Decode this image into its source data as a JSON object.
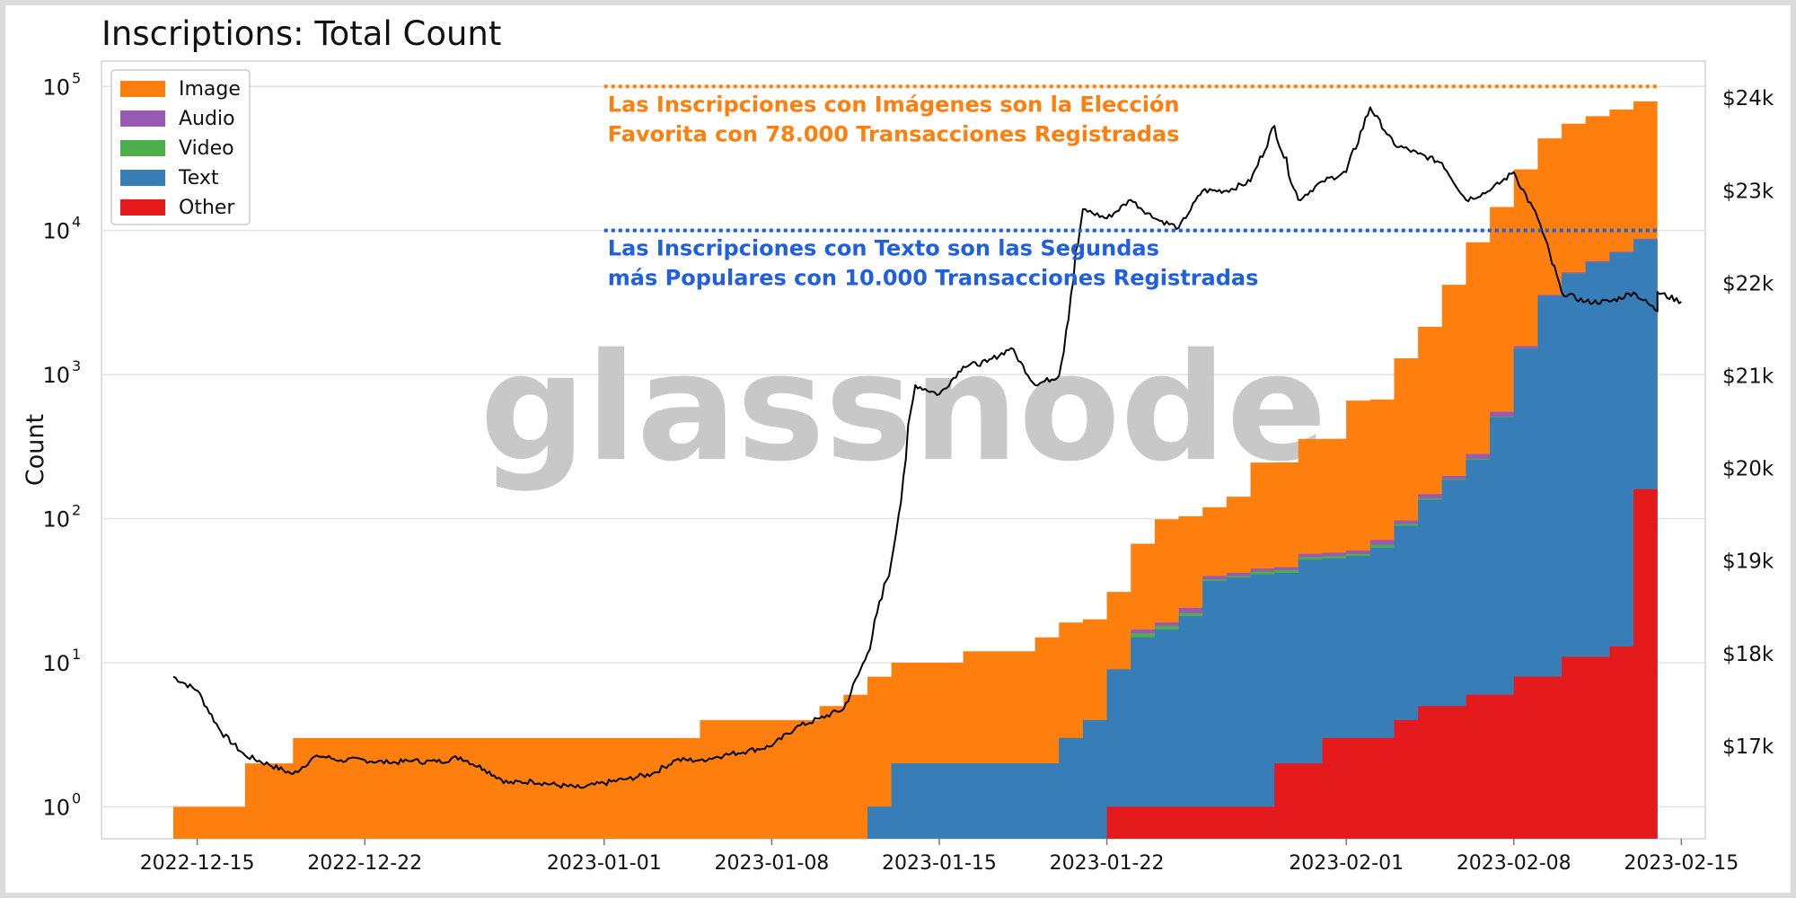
{
  "chart_data": {
    "type": "area",
    "title": "Inscriptions: Total Count",
    "ylabel": "Count",
    "y_scale": "log",
    "ylim": [
      0.6,
      150000
    ],
    "y_ticks": [
      {
        "base": "10",
        "exp": "0",
        "value": 1
      },
      {
        "base": "10",
        "exp": "1",
        "value": 10
      },
      {
        "base": "10",
        "exp": "2",
        "value": 100
      },
      {
        "base": "10",
        "exp": "3",
        "value": 1000
      },
      {
        "base": "10",
        "exp": "4",
        "value": 10000
      },
      {
        "base": "10",
        "exp": "5",
        "value": 100000
      }
    ],
    "y2_scale": "linear",
    "y2lim": [
      16000,
      24400
    ],
    "y2_ticks": [
      {
        "label": "$17k",
        "value": 17000
      },
      {
        "label": "$18k",
        "value": 18000
      },
      {
        "label": "$19k",
        "value": 19000
      },
      {
        "label": "$20k",
        "value": 20000
      },
      {
        "label": "$21k",
        "value": 21000
      },
      {
        "label": "$22k",
        "value": 22000
      },
      {
        "label": "$23k",
        "value": 23000
      },
      {
        "label": "$24k",
        "value": 24000
      }
    ],
    "xlim": [
      "2022-12-11",
      "2023-02-16"
    ],
    "x_ticks": [
      "2022-12-15",
      "2022-12-22",
      "2023-01-01",
      "2023-01-08",
      "2023-01-15",
      "2023-01-22",
      "2023-02-01",
      "2023-02-08",
      "2023-02-15"
    ],
    "grid": "horizontal",
    "legend_position": "top-left",
    "stacked": true,
    "series": [
      {
        "name": "Image",
        "color": "#ff7f0e",
        "points": [
          [
            "2022-12-14",
            1
          ],
          [
            "2022-12-17",
            2
          ],
          [
            "2022-12-19",
            3
          ],
          [
            "2023-01-05",
            4
          ],
          [
            "2023-01-10",
            5
          ],
          [
            "2023-01-11",
            6
          ],
          [
            "2023-01-12",
            7
          ],
          [
            "2023-01-13",
            8
          ],
          [
            "2023-01-16",
            10
          ],
          [
            "2023-01-19",
            13
          ],
          [
            "2023-01-20",
            16
          ],
          [
            "2023-01-22",
            22
          ],
          [
            "2023-01-23",
            50
          ],
          [
            "2023-01-24",
            80
          ],
          [
            "2023-01-27",
            100
          ],
          [
            "2023-01-28",
            200
          ],
          [
            "2023-01-30",
            300
          ],
          [
            "2023-02-01",
            600
          ],
          [
            "2023-02-03",
            1200
          ],
          [
            "2023-02-04",
            2000
          ],
          [
            "2023-02-05",
            4000
          ],
          [
            "2023-02-06",
            8000
          ],
          [
            "2023-02-07",
            14000
          ],
          [
            "2023-02-08",
            25000
          ],
          [
            "2023-02-09",
            40000
          ],
          [
            "2023-02-10",
            50000
          ],
          [
            "2023-02-11",
            56000
          ],
          [
            "2023-02-12",
            62000
          ],
          [
            "2023-02-13",
            70000
          ],
          [
            "2023-02-14",
            78000
          ]
        ]
      },
      {
        "name": "Audio",
        "color": "#9b59b6",
        "points": [
          [
            "2023-01-22",
            0
          ],
          [
            "2023-01-23",
            1
          ],
          [
            "2023-01-25",
            2
          ],
          [
            "2023-01-30",
            3
          ],
          [
            "2023-02-02",
            5
          ],
          [
            "2023-02-04",
            10
          ],
          [
            "2023-02-06",
            20
          ],
          [
            "2023-02-07",
            40
          ],
          [
            "2023-02-08",
            60
          ],
          [
            "2023-02-10",
            100
          ],
          [
            "2023-02-14",
            150
          ]
        ]
      },
      {
        "name": "Video",
        "color": "#4daf4a",
        "points": [
          [
            "2023-01-22",
            0
          ],
          [
            "2023-01-23",
            1
          ],
          [
            "2023-01-28",
            2
          ],
          [
            "2023-02-02",
            3
          ],
          [
            "2023-02-06",
            5
          ],
          [
            "2023-02-08",
            8
          ],
          [
            "2023-02-10",
            15
          ],
          [
            "2023-02-14",
            30
          ]
        ]
      },
      {
        "name": "Text",
        "color": "#377eb8",
        "points": [
          [
            "2023-01-12",
            1
          ],
          [
            "2023-01-13",
            2
          ],
          [
            "2023-01-19",
            2
          ],
          [
            "2023-01-20",
            3
          ],
          [
            "2023-01-21",
            4
          ],
          [
            "2023-01-22",
            8
          ],
          [
            "2023-01-23",
            14
          ],
          [
            "2023-01-24",
            16
          ],
          [
            "2023-01-25",
            20
          ],
          [
            "2023-01-26",
            36
          ],
          [
            "2023-01-27",
            38
          ],
          [
            "2023-01-28",
            40
          ],
          [
            "2023-01-30",
            50
          ],
          [
            "2023-02-01",
            52
          ],
          [
            "2023-02-02",
            60
          ],
          [
            "2023-02-03",
            85
          ],
          [
            "2023-02-04",
            130
          ],
          [
            "2023-02-05",
            180
          ],
          [
            "2023-02-06",
            250
          ],
          [
            "2023-02-07",
            500
          ],
          [
            "2023-02-08",
            1500
          ],
          [
            "2023-02-09",
            3500
          ],
          [
            "2023-02-10",
            5000
          ],
          [
            "2023-02-11",
            6000
          ],
          [
            "2023-02-12",
            7000
          ],
          [
            "2023-02-13",
            8500
          ],
          [
            "2023-02-14",
            10000
          ]
        ]
      },
      {
        "name": "Other",
        "color": "#e41a1c",
        "points": [
          [
            "2023-01-22",
            1
          ],
          [
            "2023-01-28",
            1
          ],
          [
            "2023-01-29",
            2
          ],
          [
            "2023-01-31",
            3
          ],
          [
            "2023-02-03",
            4
          ],
          [
            "2023-02-04",
            5
          ],
          [
            "2023-02-06",
            6
          ],
          [
            "2023-02-08",
            8
          ],
          [
            "2023-02-10",
            11
          ],
          [
            "2023-02-12",
            13
          ],
          [
            "2023-02-13",
            20
          ],
          [
            "2023-02-13",
            160
          ],
          [
            "2023-02-14",
            170
          ]
        ]
      }
    ],
    "price_series": {
      "axis": "right",
      "color": "#000000",
      "points": [
        [
          "2022-12-14",
          17750
        ],
        [
          "2022-12-15",
          17600
        ],
        [
          "2022-12-16",
          17150
        ],
        [
          "2022-12-17",
          16900
        ],
        [
          "2022-12-18",
          16800
        ],
        [
          "2022-12-19",
          16700
        ],
        [
          "2022-12-20",
          16900
        ],
        [
          "2022-12-21",
          16850
        ],
        [
          "2022-12-22",
          16850
        ],
        [
          "2022-12-23",
          16820
        ],
        [
          "2022-12-24",
          16840
        ],
        [
          "2022-12-25",
          16830
        ],
        [
          "2022-12-26",
          16880
        ],
        [
          "2022-12-27",
          16750
        ],
        [
          "2022-12-28",
          16600
        ],
        [
          "2022-12-29",
          16620
        ],
        [
          "2022-12-30",
          16580
        ],
        [
          "2022-12-31",
          16550
        ],
        [
          "2023-01-01",
          16600
        ],
        [
          "2023-01-02",
          16650
        ],
        [
          "2023-01-03",
          16700
        ],
        [
          "2023-01-04",
          16850
        ],
        [
          "2023-01-05",
          16850
        ],
        [
          "2023-01-06",
          16900
        ],
        [
          "2023-01-07",
          16950
        ],
        [
          "2023-01-08",
          17000
        ],
        [
          "2023-01-09",
          17200
        ],
        [
          "2023-01-10",
          17300
        ],
        [
          "2023-01-11",
          17400
        ],
        [
          "2023-01-12",
          18000
        ],
        [
          "2023-01-13",
          19000
        ],
        [
          "2023-01-14",
          20900
        ],
        [
          "2023-01-15",
          20800
        ],
        [
          "2023-01-16",
          21100
        ],
        [
          "2023-01-17",
          21150
        ],
        [
          "2023-01-18",
          21300
        ],
        [
          "2023-01-19",
          20900
        ],
        [
          "2023-01-20",
          21000
        ],
        [
          "2023-01-21",
          22800
        ],
        [
          "2023-01-22",
          22700
        ],
        [
          "2023-01-23",
          22900
        ],
        [
          "2023-01-24",
          22700
        ],
        [
          "2023-01-25",
          22600
        ],
        [
          "2023-01-26",
          23000
        ],
        [
          "2023-01-27",
          23000
        ],
        [
          "2023-01-28",
          23100
        ],
        [
          "2023-01-29",
          23700
        ],
        [
          "2023-01-30",
          22900
        ],
        [
          "2023-01-31",
          23100
        ],
        [
          "2023-02-01",
          23200
        ],
        [
          "2023-02-02",
          23900
        ],
        [
          "2023-02-03",
          23500
        ],
        [
          "2023-02-04",
          23400
        ],
        [
          "2023-02-05",
          23300
        ],
        [
          "2023-02-06",
          22900
        ],
        [
          "2023-02-07",
          23000
        ],
        [
          "2023-02-08",
          23200
        ],
        [
          "2023-02-09",
          22700
        ],
        [
          "2023-02-10",
          21900
        ],
        [
          "2023-02-11",
          21800
        ],
        [
          "2023-02-12",
          21800
        ],
        [
          "2023-02-13",
          21900
        ],
        [
          "2023-02-14",
          21700
        ],
        [
          "2023-02-14",
          21900
        ],
        [
          "2023-02-15",
          21800
        ]
      ]
    },
    "annotations": [
      {
        "id": "image",
        "color": "#ff7f0e",
        "line_value": 100000,
        "line_start": "2023-01-01",
        "line_end": "2023-02-14",
        "lines": [
          "Las Inscripciones con Imágenes son la Elección",
          "Favorita con 78.000 Transacciones Registradas"
        ]
      },
      {
        "id": "text",
        "color": "#1f5fe0",
        "line_value": 10000,
        "line_start": "2023-01-01",
        "line_end": "2023-02-14",
        "lines": [
          "Las Inscripciones con Texto son las Segundas",
          "más Populares con 10.000 Transacciones Registradas"
        ]
      }
    ],
    "watermark": "glassnode"
  }
}
